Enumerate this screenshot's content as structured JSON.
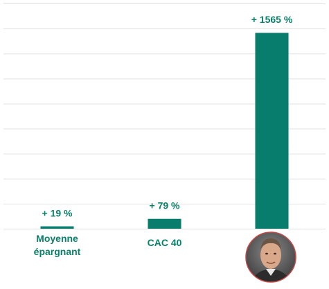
{
  "chart_data": {
    "type": "bar",
    "categories": [
      "Moyenne épargnant",
      "CAC 40",
      null
    ],
    "values": [
      19,
      79,
      1565
    ],
    "value_labels": [
      "+ 19 %",
      "+ 79 %",
      "+ 1565 %"
    ],
    "color": "#087d6d",
    "ylim": [
      0,
      1800
    ],
    "yticks": [
      0,
      200,
      400,
      600,
      800,
      1000,
      1200,
      1400,
      1600,
      1800
    ],
    "grid": true
  }
}
